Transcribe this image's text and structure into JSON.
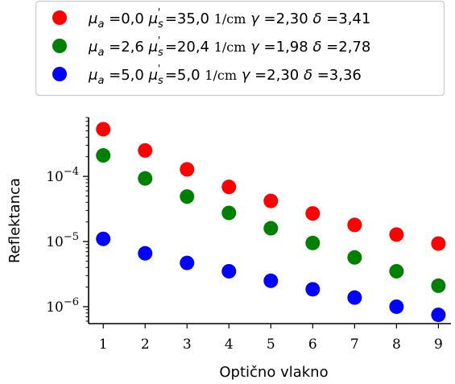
{
  "chart_data": {
    "type": "scatter",
    "xlabel": "Optično vlakno",
    "ylabel": "Reflektanca",
    "x": [
      1,
      2,
      3,
      4,
      5,
      6,
      7,
      8,
      9
    ],
    "xlim": [
      0.65,
      9.3
    ],
    "ylim": [
      5.5e-07,
      0.0008
    ],
    "yscale": "log",
    "xticks": [
      "1",
      "2",
      "3",
      "4",
      "5",
      "6",
      "7",
      "8",
      "9"
    ],
    "yticks": [
      {
        "value": 0.0001,
        "label": "10^-4"
      },
      {
        "value": 1e-05,
        "label": "10^-5"
      },
      {
        "value": 1e-06,
        "label": "10^-6"
      }
    ],
    "grid": false,
    "legend_position": "top",
    "series": [
      {
        "name": "μa =0,0  μ's =35,0  1/cm  γ =2,30  δ =3,41",
        "color": "#ff0000",
        "values": [
          0.00053,
          0.00025,
          0.000128,
          6.9e-05,
          4.2e-05,
          2.7e-05,
          1.8e-05,
          1.28e-05,
          9.3e-06
        ],
        "legend": {
          "mua": "0,0",
          "mus": "35,0",
          "unit": "1/cm",
          "gamma": "2,30",
          "delta": "3,41"
        }
      },
      {
        "name": "μa =2,6  μ's =20,4  1/cm  γ =1,98  δ =2,78",
        "color": "#008000",
        "values": [
          0.00021,
          9.3e-05,
          4.9e-05,
          2.75e-05,
          1.6e-05,
          9.5e-06,
          5.7e-06,
          3.5e-06,
          2.1e-06
        ],
        "legend": {
          "mua": "2,6",
          "mus": "20,4",
          "unit": "1/cm",
          "gamma": "1,98",
          "delta": "2,78"
        }
      },
      {
        "name": "μa =5,0  μ's =5,0  1/cm  γ =2,30  δ =3,36",
        "color": "#0000ff",
        "values": [
          1.1e-05,
          6.6e-06,
          4.7e-06,
          3.5e-06,
          2.5e-06,
          1.85e-06,
          1.38e-06,
          1e-06,
          7.5e-07
        ],
        "legend": {
          "mua": "5,0",
          "mus": "5,0",
          "unit": "1/cm",
          "gamma": "2,30",
          "delta": "3,36"
        }
      }
    ]
  }
}
